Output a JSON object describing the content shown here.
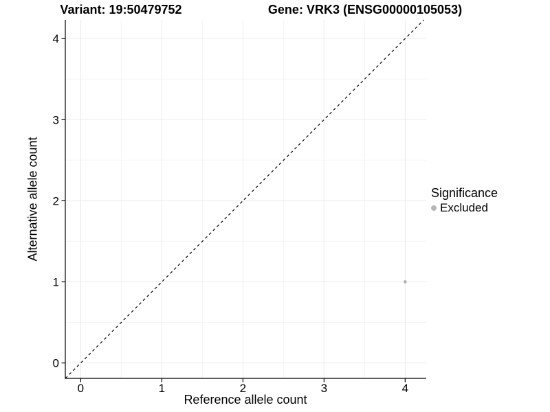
{
  "chart_data": {
    "type": "scatter",
    "title_left": "Variant: 19:50479752",
    "title_right": "Gene: VRK3 (ENSG00000105053)",
    "xlabel": "Reference allele count",
    "ylabel": "Alternative allele count",
    "xlim": [
      -0.19,
      4.26
    ],
    "ylim": [
      -0.19,
      4.23
    ],
    "x_ticks": [
      0,
      1,
      2,
      3,
      4
    ],
    "y_ticks": [
      0,
      1,
      2,
      3,
      4
    ],
    "minor_step": 0.5,
    "grid": true,
    "identity_line": {
      "style": "dashed",
      "from": -0.19,
      "to": 4.23,
      "color": "#000000"
    },
    "series": [
      {
        "name": "Excluded",
        "color": "#b5b5b5",
        "points": [
          {
            "x": 4,
            "y": 1
          }
        ]
      }
    ],
    "legend": {
      "title": "Significance",
      "position": "right",
      "items": [
        {
          "label": "Excluded",
          "color": "#b5b5b5"
        }
      ]
    },
    "colors": {
      "background": "#ffffff",
      "grid_major": "#ebebeb",
      "grid_minor": "#f5f5f5",
      "axis": "#000000",
      "tick_text": "#000000"
    }
  }
}
